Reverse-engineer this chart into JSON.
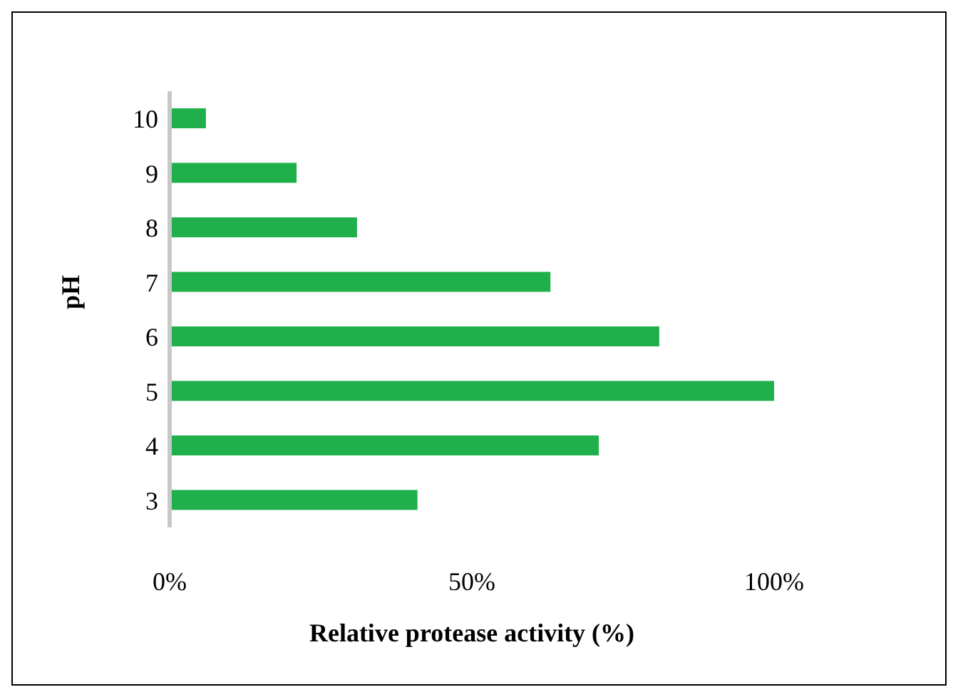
{
  "chart_data": {
    "type": "bar",
    "orientation": "horizontal",
    "xlabel": "Relative protease activity (%)",
    "ylabel": "pH",
    "categories": [
      "10",
      "9",
      "8",
      "7",
      "6",
      "5",
      "4",
      "3"
    ],
    "values": [
      6,
      21,
      31,
      63,
      81,
      100,
      71,
      41
    ],
    "color": "#1fb04c",
    "xlim": [
      0,
      100
    ],
    "xticks": [
      {
        "value": 0,
        "label": "0%"
      },
      {
        "value": 50,
        "label": "50%"
      },
      {
        "value": 100,
        "label": "100%"
      }
    ],
    "grid": false,
    "legend": false
  }
}
